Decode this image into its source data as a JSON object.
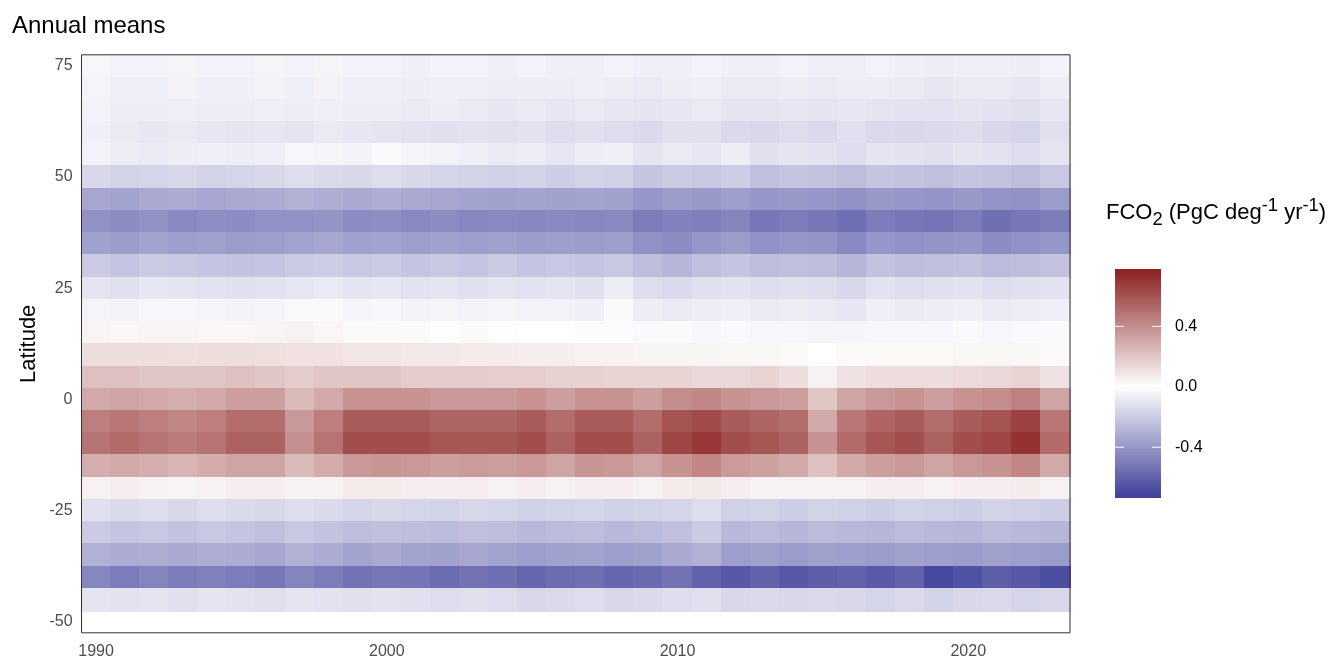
{
  "chart_data": {
    "type": "heatmap",
    "title": "Annual means",
    "ylabel": "Latitude",
    "clabel": "FCO$_{2}$ (PgC deg$^{-1}$ yr$^{-1}$)",
    "categories": [
      "1990",
      null,
      null,
      null,
      null,
      null,
      null,
      null,
      null,
      null,
      "2000",
      null,
      null,
      null,
      null,
      null,
      null,
      null,
      null,
      null,
      "2010",
      null,
      null,
      null,
      null,
      null,
      null,
      null,
      null,
      null,
      "2020",
      null,
      null,
      null
    ],
    "y_categories": [
      "75",
      null,
      null,
      null,
      null,
      "50",
      null,
      null,
      null,
      null,
      "25",
      null,
      null,
      null,
      null,
      "0",
      null,
      null,
      null,
      null,
      "-25",
      null,
      null,
      null,
      null,
      "-50"
    ],
    "cells": [
      [
        -0.03,
        -0.05,
        -0.05,
        -0.04,
        -0.05,
        -0.05,
        -0.04,
        -0.05,
        -0.04,
        -0.05,
        -0.05,
        -0.06,
        -0.05,
        -0.05,
        -0.06,
        -0.05,
        -0.06,
        -0.06,
        -0.05,
        -0.06,
        -0.06,
        -0.05,
        -0.06,
        -0.06,
        -0.05,
        -0.06,
        -0.06,
        -0.05,
        -0.06,
        -0.07,
        -0.06,
        -0.06,
        -0.07,
        -0.05
      ],
      [
        -0.04,
        -0.06,
        -0.06,
        -0.05,
        -0.06,
        -0.06,
        -0.05,
        -0.06,
        -0.05,
        -0.06,
        -0.06,
        -0.07,
        -0.06,
        -0.06,
        -0.07,
        -0.07,
        -0.07,
        -0.06,
        -0.07,
        -0.08,
        -0.07,
        -0.06,
        -0.08,
        -0.08,
        -0.07,
        -0.08,
        -0.07,
        -0.07,
        -0.08,
        -0.09,
        -0.08,
        -0.08,
        -0.09,
        -0.07
      ],
      [
        -0.05,
        -0.07,
        -0.07,
        -0.06,
        -0.07,
        -0.07,
        -0.06,
        -0.07,
        -0.06,
        -0.07,
        -0.07,
        -0.08,
        -0.07,
        -0.08,
        -0.09,
        -0.08,
        -0.09,
        -0.08,
        -0.09,
        -0.1,
        -0.09,
        -0.08,
        -0.1,
        -0.1,
        -0.09,
        -0.1,
        -0.09,
        -0.1,
        -0.11,
        -0.11,
        -0.1,
        -0.11,
        -0.12,
        -0.09
      ],
      [
        -0.06,
        -0.08,
        -0.09,
        -0.08,
        -0.09,
        -0.1,
        -0.09,
        -0.1,
        -0.08,
        -0.09,
        -0.1,
        -0.11,
        -0.12,
        -0.11,
        -0.12,
        -0.11,
        -0.13,
        -0.12,
        -0.13,
        -0.14,
        -0.12,
        -0.12,
        -0.14,
        -0.15,
        -0.13,
        -0.14,
        -0.12,
        -0.14,
        -0.15,
        -0.14,
        -0.13,
        -0.15,
        -0.16,
        -0.12
      ],
      [
        -0.05,
        -0.07,
        -0.08,
        -0.07,
        -0.06,
        -0.07,
        -0.06,
        -0.03,
        -0.04,
        -0.05,
        -0.02,
        -0.04,
        -0.05,
        -0.06,
        -0.08,
        -0.07,
        -0.09,
        -0.07,
        -0.06,
        -0.1,
        -0.08,
        -0.09,
        -0.07,
        -0.12,
        -0.1,
        -0.11,
        -0.13,
        -0.1,
        -0.11,
        -0.12,
        -0.1,
        -0.11,
        -0.13,
        -0.1
      ],
      [
        -0.15,
        -0.17,
        -0.16,
        -0.15,
        -0.17,
        -0.16,
        -0.15,
        -0.13,
        -0.14,
        -0.15,
        -0.13,
        -0.15,
        -0.16,
        -0.17,
        -0.18,
        -0.17,
        -0.19,
        -0.17,
        -0.18,
        -0.22,
        -0.2,
        -0.21,
        -0.19,
        -0.24,
        -0.22,
        -0.23,
        -0.25,
        -0.22,
        -0.23,
        -0.24,
        -0.22,
        -0.23,
        -0.25,
        -0.21
      ],
      [
        -0.34,
        -0.35,
        -0.33,
        -0.32,
        -0.34,
        -0.33,
        -0.32,
        -0.3,
        -0.31,
        -0.33,
        -0.31,
        -0.33,
        -0.34,
        -0.35,
        -0.36,
        -0.35,
        -0.36,
        -0.35,
        -0.36,
        -0.4,
        -0.38,
        -0.39,
        -0.37,
        -0.4,
        -0.39,
        -0.4,
        -0.42,
        -0.39,
        -0.4,
        -0.41,
        -0.39,
        -0.41,
        -0.42,
        -0.38
      ],
      [
        -0.42,
        -0.44,
        -0.42,
        -0.45,
        -0.43,
        -0.44,
        -0.42,
        -0.42,
        -0.41,
        -0.44,
        -0.43,
        -0.45,
        -0.44,
        -0.46,
        -0.45,
        -0.46,
        -0.45,
        -0.46,
        -0.45,
        -0.5,
        -0.48,
        -0.49,
        -0.47,
        -0.52,
        -0.5,
        -0.52,
        -0.55,
        -0.5,
        -0.52,
        -0.53,
        -0.5,
        -0.55,
        -0.52,
        -0.5
      ],
      [
        -0.36,
        -0.38,
        -0.35,
        -0.37,
        -0.36,
        -0.38,
        -0.37,
        -0.35,
        -0.34,
        -0.36,
        -0.35,
        -0.37,
        -0.36,
        -0.37,
        -0.36,
        -0.38,
        -0.37,
        -0.38,
        -0.37,
        -0.42,
        -0.44,
        -0.4,
        -0.38,
        -0.42,
        -0.4,
        -0.41,
        -0.45,
        -0.4,
        -0.42,
        -0.41,
        -0.4,
        -0.44,
        -0.42,
        -0.4
      ],
      [
        -0.2,
        -0.22,
        -0.2,
        -0.21,
        -0.22,
        -0.23,
        -0.22,
        -0.2,
        -0.19,
        -0.21,
        -0.2,
        -0.22,
        -0.21,
        -0.22,
        -0.2,
        -0.22,
        -0.21,
        -0.22,
        -0.21,
        -0.25,
        -0.28,
        -0.24,
        -0.22,
        -0.25,
        -0.24,
        -0.25,
        -0.28,
        -0.23,
        -0.25,
        -0.24,
        -0.23,
        -0.26,
        -0.25,
        -0.23
      ],
      [
        -0.1,
        -0.12,
        -0.09,
        -0.1,
        -0.11,
        -0.12,
        -0.11,
        -0.09,
        -0.08,
        -0.1,
        -0.09,
        -0.11,
        -0.1,
        -0.12,
        -0.1,
        -0.11,
        -0.1,
        -0.12,
        -0.07,
        -0.13,
        -0.14,
        -0.12,
        -0.11,
        -0.13,
        -0.12,
        -0.13,
        -0.15,
        -0.11,
        -0.13,
        -0.12,
        -0.11,
        -0.13,
        -0.12,
        -0.11
      ],
      [
        -0.04,
        -0.05,
        -0.03,
        -0.03,
        -0.04,
        -0.05,
        -0.04,
        -0.02,
        -0.02,
        -0.04,
        -0.03,
        -0.05,
        -0.04,
        -0.05,
        -0.04,
        -0.05,
        -0.05,
        -0.06,
        -0.02,
        -0.07,
        -0.08,
        -0.07,
        -0.06,
        -0.08,
        -0.07,
        -0.08,
        -0.09,
        -0.06,
        -0.08,
        -0.07,
        -0.06,
        -0.08,
        -0.07,
        -0.06
      ],
      [
        0.04,
        0.03,
        0.04,
        0.04,
        0.03,
        0.03,
        0.04,
        0.05,
        0.03,
        0.02,
        0.02,
        0.02,
        0.01,
        0.02,
        0.01,
        0.0,
        0.0,
        -0.01,
        -0.01,
        -0.02,
        -0.02,
        -0.03,
        -0.02,
        -0.03,
        -0.03,
        -0.04,
        -0.04,
        -0.03,
        -0.03,
        -0.03,
        -0.02,
        -0.03,
        -0.02,
        -0.02
      ],
      [
        0.12,
        0.12,
        0.12,
        0.11,
        0.12,
        0.12,
        0.11,
        0.1,
        0.1,
        0.09,
        0.09,
        0.08,
        0.08,
        0.07,
        0.07,
        0.06,
        0.06,
        0.05,
        0.05,
        0.04,
        0.04,
        0.04,
        0.03,
        0.03,
        0.02,
        0.0,
        0.02,
        0.02,
        0.02,
        0.02,
        0.03,
        0.03,
        0.03,
        0.02
      ],
      [
        0.22,
        0.22,
        0.2,
        0.2,
        0.2,
        0.22,
        0.2,
        0.18,
        0.2,
        0.2,
        0.2,
        0.18,
        0.18,
        0.18,
        0.17,
        0.17,
        0.16,
        0.16,
        0.15,
        0.15,
        0.15,
        0.14,
        0.14,
        0.15,
        0.12,
        0.05,
        0.1,
        0.12,
        0.12,
        0.12,
        0.13,
        0.14,
        0.15,
        0.1
      ],
      [
        0.3,
        0.32,
        0.3,
        0.28,
        0.3,
        0.34,
        0.34,
        0.24,
        0.3,
        0.38,
        0.38,
        0.38,
        0.36,
        0.36,
        0.36,
        0.38,
        0.34,
        0.38,
        0.38,
        0.34,
        0.4,
        0.42,
        0.38,
        0.36,
        0.34,
        0.2,
        0.32,
        0.36,
        0.38,
        0.34,
        0.38,
        0.4,
        0.44,
        0.32
      ],
      [
        0.45,
        0.48,
        0.45,
        0.42,
        0.45,
        0.51,
        0.51,
        0.36,
        0.45,
        0.57,
        0.57,
        0.57,
        0.54,
        0.54,
        0.54,
        0.57,
        0.51,
        0.57,
        0.57,
        0.51,
        0.6,
        0.63,
        0.57,
        0.54,
        0.51,
        0.3,
        0.48,
        0.54,
        0.57,
        0.51,
        0.57,
        0.6,
        0.66,
        0.48
      ],
      [
        0.49,
        0.52,
        0.49,
        0.46,
        0.49,
        0.55,
        0.55,
        0.39,
        0.49,
        0.62,
        0.62,
        0.62,
        0.59,
        0.59,
        0.59,
        0.62,
        0.55,
        0.62,
        0.62,
        0.55,
        0.65,
        0.7,
        0.62,
        0.59,
        0.55,
        0.38,
        0.52,
        0.59,
        0.62,
        0.55,
        0.62,
        0.65,
        0.72,
        0.52
      ],
      [
        0.28,
        0.3,
        0.28,
        0.26,
        0.29,
        0.32,
        0.32,
        0.24,
        0.29,
        0.36,
        0.37,
        0.36,
        0.34,
        0.35,
        0.34,
        0.36,
        0.32,
        0.37,
        0.36,
        0.32,
        0.38,
        0.42,
        0.35,
        0.33,
        0.3,
        0.22,
        0.3,
        0.34,
        0.36,
        0.32,
        0.36,
        0.38,
        0.42,
        0.3
      ],
      [
        0.05,
        0.06,
        0.05,
        0.04,
        0.05,
        0.06,
        0.06,
        0.05,
        0.05,
        0.07,
        0.07,
        0.06,
        0.06,
        0.06,
        0.05,
        0.06,
        0.05,
        0.06,
        0.06,
        0.05,
        0.07,
        0.08,
        0.06,
        0.05,
        0.05,
        0.05,
        0.05,
        0.06,
        0.06,
        0.05,
        0.06,
        0.06,
        0.07,
        0.05
      ],
      [
        -0.12,
        -0.14,
        -0.13,
        -0.15,
        -0.13,
        -0.14,
        -0.15,
        -0.13,
        -0.14,
        -0.16,
        -0.15,
        -0.16,
        -0.17,
        -0.15,
        -0.16,
        -0.18,
        -0.17,
        -0.16,
        -0.18,
        -0.17,
        -0.16,
        -0.13,
        -0.18,
        -0.17,
        -0.19,
        -0.17,
        -0.18,
        -0.19,
        -0.17,
        -0.18,
        -0.19,
        -0.17,
        -0.18,
        -0.19
      ],
      [
        -0.2,
        -0.22,
        -0.21,
        -0.23,
        -0.21,
        -0.22,
        -0.24,
        -0.21,
        -0.23,
        -0.25,
        -0.24,
        -0.25,
        -0.26,
        -0.24,
        -0.25,
        -0.27,
        -0.26,
        -0.25,
        -0.27,
        -0.26,
        -0.24,
        -0.2,
        -0.27,
        -0.26,
        -0.28,
        -0.26,
        -0.27,
        -0.28,
        -0.26,
        -0.27,
        -0.28,
        -0.26,
        -0.27,
        -0.28
      ],
      [
        -0.3,
        -0.32,
        -0.31,
        -0.33,
        -0.31,
        -0.32,
        -0.34,
        -0.3,
        -0.32,
        -0.35,
        -0.33,
        -0.35,
        -0.36,
        -0.34,
        -0.35,
        -0.37,
        -0.36,
        -0.35,
        -0.37,
        -0.36,
        -0.33,
        -0.3,
        -0.37,
        -0.36,
        -0.38,
        -0.36,
        -0.37,
        -0.38,
        -0.36,
        -0.37,
        -0.38,
        -0.36,
        -0.37,
        -0.38
      ],
      [
        -0.46,
        -0.5,
        -0.47,
        -0.5,
        -0.48,
        -0.5,
        -0.52,
        -0.47,
        -0.5,
        -0.54,
        -0.52,
        -0.53,
        -0.56,
        -0.54,
        -0.55,
        -0.58,
        -0.56,
        -0.55,
        -0.58,
        -0.57,
        -0.54,
        -0.6,
        -0.64,
        -0.6,
        -0.64,
        -0.62,
        -0.6,
        -0.63,
        -0.6,
        -0.7,
        -0.66,
        -0.62,
        -0.64,
        -0.68
      ],
      [
        -0.1,
        -0.11,
        -0.1,
        -0.12,
        -0.1,
        -0.11,
        -0.12,
        -0.1,
        -0.11,
        -0.12,
        -0.11,
        -0.12,
        -0.13,
        -0.12,
        -0.13,
        -0.15,
        -0.14,
        -0.13,
        -0.15,
        -0.14,
        -0.13,
        -0.12,
        -0.15,
        -0.14,
        -0.15,
        -0.14,
        -0.15,
        -0.16,
        -0.14,
        -0.17,
        -0.15,
        -0.14,
        -0.16,
        -0.15
      ],
      [
        null,
        null,
        null,
        null,
        null,
        null,
        null,
        null,
        null,
        null,
        null,
        null,
        null,
        null,
        null,
        null,
        null,
        null,
        null,
        null,
        null,
        null,
        null,
        null,
        null,
        null,
        null,
        null,
        null,
        null,
        null,
        null,
        null,
        null
      ]
    ],
    "clim": [
      -0.73,
      0.78
    ],
    "cticks": [
      -0.4,
      {
        "value": 0,
        "label": "0.0"
      },
      0.4
    ]
  }
}
